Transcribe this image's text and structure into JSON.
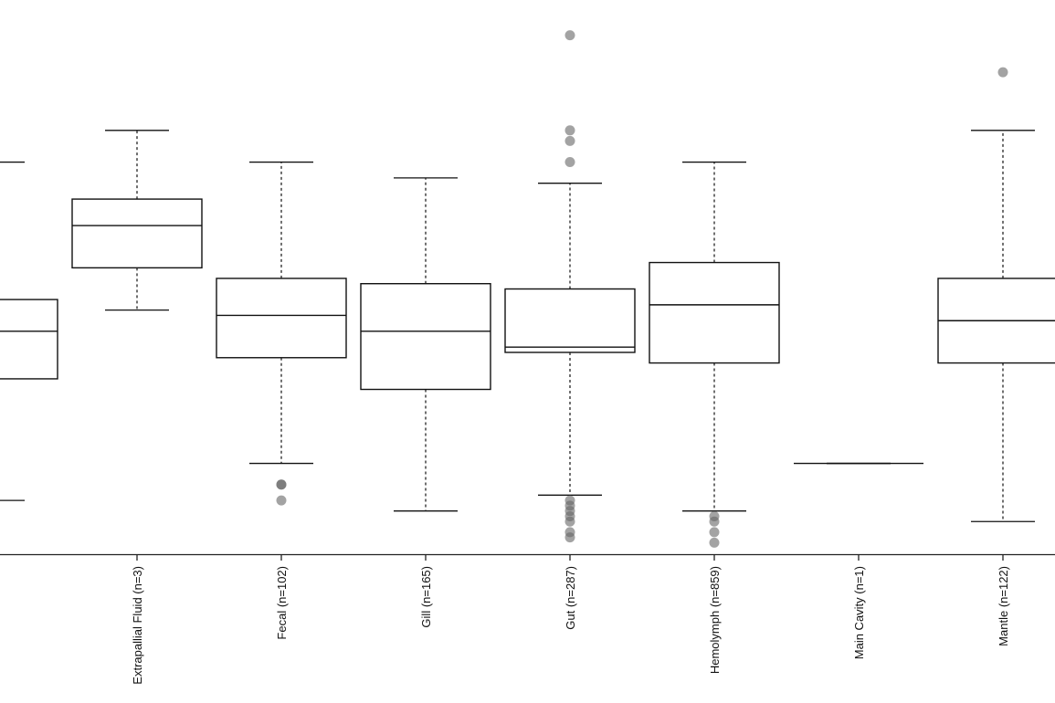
{
  "chart_data": {
    "type": "box",
    "xlabel": "",
    "ylabel": "",
    "title": "",
    "ylim": [
      0,
      1
    ],
    "categories": [
      "",
      "Extrapallial Fluid (n=3)",
      "Fecal (n=102)",
      "Gill (n=165)",
      "Gut (n=287)",
      "Hemolymph (n=859)",
      "Main Cavity (n=1)",
      "Mantle (n=122)"
    ],
    "boxes": [
      {
        "whisker_low": 0.1,
        "q1": 0.33,
        "median": 0.42,
        "q3": 0.48,
        "whisker_high": 0.74,
        "outliers": []
      },
      {
        "whisker_low": 0.46,
        "q1": 0.54,
        "median": 0.62,
        "q3": 0.67,
        "whisker_high": 0.8,
        "outliers": []
      },
      {
        "whisker_low": 0.17,
        "q1": 0.37,
        "median": 0.45,
        "q3": 0.52,
        "whisker_high": 0.74,
        "outliers": [
          0.13,
          0.13,
          0.1
        ]
      },
      {
        "whisker_low": 0.08,
        "q1": 0.31,
        "median": 0.42,
        "q3": 0.51,
        "whisker_high": 0.71,
        "outliers": []
      },
      {
        "whisker_low": 0.11,
        "q1": 0.38,
        "median": 0.39,
        "q3": 0.5,
        "whisker_high": 0.7,
        "outliers": [
          0.1,
          0.09,
          0.08,
          0.07,
          0.06,
          0.04,
          0.03,
          0.8,
          0.78,
          0.74,
          0.98
        ]
      },
      {
        "whisker_low": 0.08,
        "q1": 0.36,
        "median": 0.47,
        "q3": 0.55,
        "whisker_high": 0.74,
        "outliers": [
          0.07,
          0.06,
          0.04,
          0.02
        ]
      },
      {
        "whisker_low": 0.17,
        "q1": 0.17,
        "median": 0.17,
        "q3": 0.17,
        "whisker_high": 0.17,
        "outliers": []
      },
      {
        "whisker_low": 0.06,
        "q1": 0.36,
        "median": 0.44,
        "q3": 0.52,
        "whisker_high": 0.8,
        "outliers": [
          0.91
        ]
      }
    ]
  }
}
